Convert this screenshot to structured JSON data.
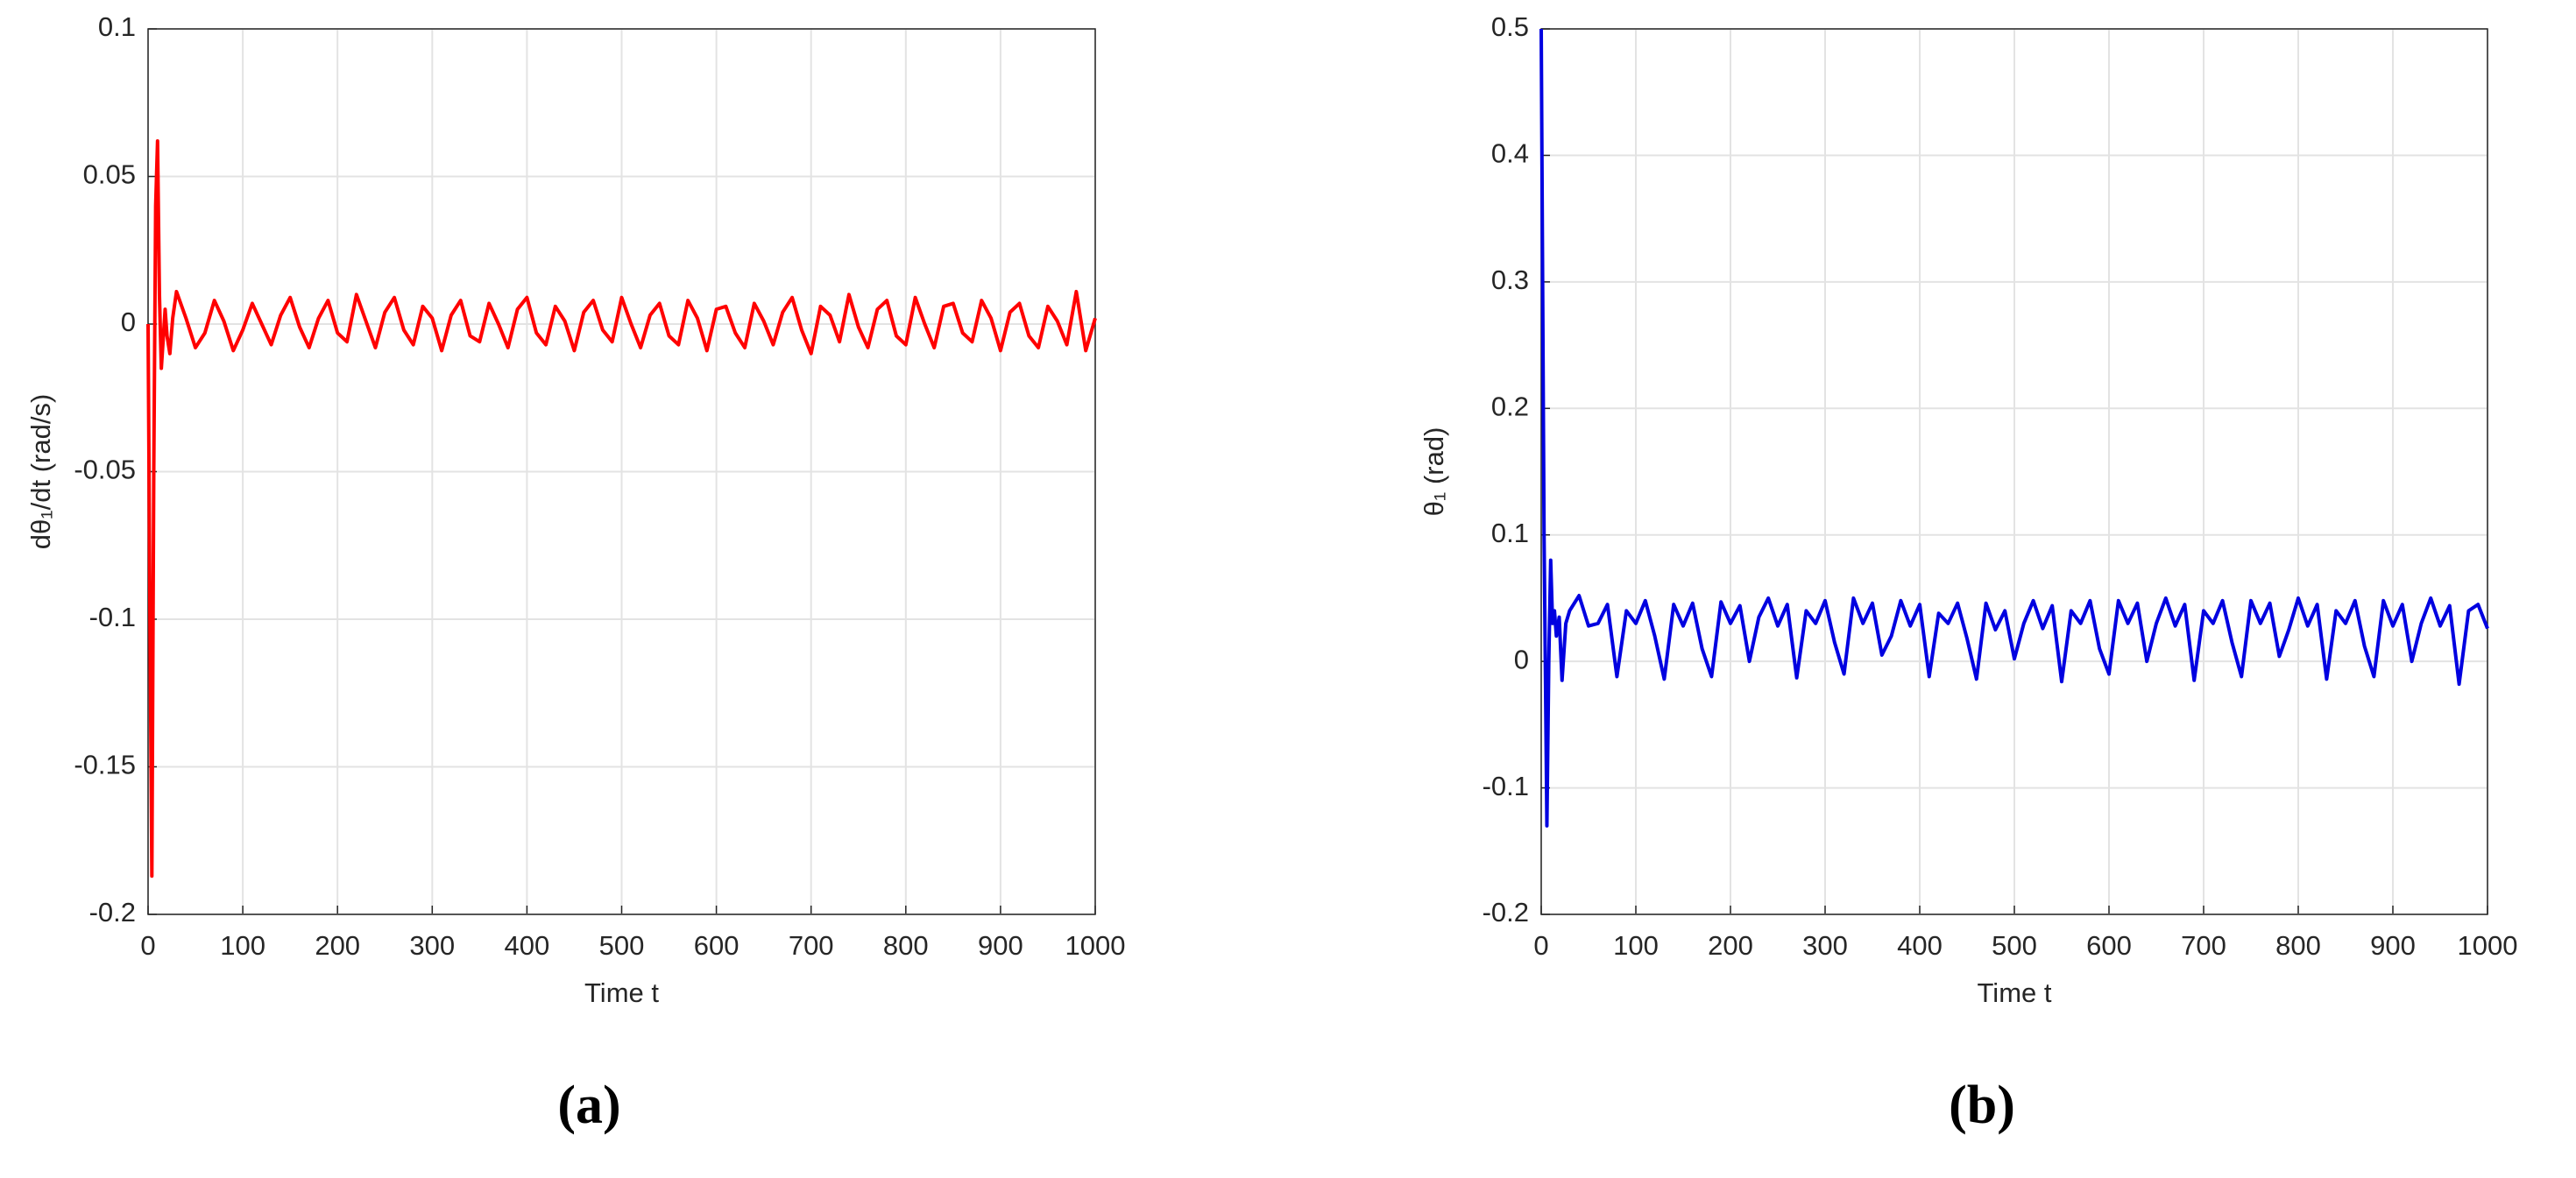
{
  "chart_data": [
    {
      "type": "line",
      "panel_label": "(a)",
      "xlabel": "Time t",
      "ylabel": "dθ₁/dt (rad/s)",
      "xlim": [
        0,
        1000
      ],
      "xticks": [
        0,
        100,
        200,
        300,
        400,
        500,
        600,
        700,
        800,
        900,
        1000
      ],
      "ylim": [
        -0.2,
        0.1
      ],
      "yticks": [
        -0.2,
        -0.15,
        -0.1,
        -0.05,
        0,
        0.05,
        0.1
      ],
      "grid": true,
      "x": [
        0,
        2,
        4,
        6,
        8,
        10,
        12,
        14,
        16,
        18,
        20,
        23,
        26,
        30,
        40,
        50,
        60,
        70,
        80,
        90,
        100,
        110,
        120,
        130,
        140,
        150,
        160,
        170,
        180,
        190,
        200,
        210,
        220,
        230,
        240,
        250,
        260,
        270,
        280,
        290,
        300,
        310,
        320,
        330,
        340,
        350,
        360,
        370,
        380,
        390,
        400,
        410,
        420,
        430,
        440,
        450,
        460,
        470,
        480,
        490,
        500,
        510,
        520,
        530,
        540,
        550,
        560,
        570,
        580,
        590,
        600,
        610,
        620,
        630,
        640,
        650,
        660,
        670,
        680,
        690,
        700,
        710,
        720,
        730,
        740,
        750,
        760,
        770,
        780,
        790,
        800,
        810,
        820,
        830,
        840,
        850,
        860,
        870,
        880,
        890,
        900,
        910,
        920,
        930,
        940,
        950,
        960,
        970,
        980,
        990,
        1000
      ],
      "series": [
        {
          "color": "#ff0000",
          "values": [
            0,
            -0.1,
            -0.187,
            -0.05,
            0.04,
            0.062,
            0.01,
            -0.015,
            -0.005,
            0.005,
            -0.004,
            -0.01,
            0.002,
            0.011,
            0.002,
            -0.008,
            -0.003,
            0.008,
            0.001,
            -0.009,
            -0.002,
            0.007,
            0.0,
            -0.007,
            0.003,
            0.009,
            -0.001,
            -0.008,
            0.002,
            0.008,
            -0.003,
            -0.006,
            0.01,
            0.001,
            -0.008,
            0.004,
            0.009,
            -0.002,
            -0.007,
            0.006,
            0.002,
            -0.009,
            0.003,
            0.008,
            -0.004,
            -0.006,
            0.007,
            0.0,
            -0.008,
            0.005,
            0.009,
            -0.003,
            -0.007,
            0.006,
            0.001,
            -0.009,
            0.004,
            0.008,
            -0.002,
            -0.006,
            0.009,
            0.0,
            -0.008,
            0.003,
            0.007,
            -0.004,
            -0.007,
            0.008,
            0.002,
            -0.009,
            0.005,
            0.006,
            -0.003,
            -0.008,
            0.007,
            0.001,
            -0.007,
            0.004,
            0.009,
            -0.002,
            -0.01,
            0.006,
            0.003,
            -0.006,
            0.01,
            -0.001,
            -0.008,
            0.005,
            0.008,
            -0.004,
            -0.007,
            0.009,
            0.0,
            -0.008,
            0.006,
            0.007,
            -0.003,
            -0.006,
            0.008,
            0.002,
            -0.009,
            0.004,
            0.007,
            -0.004,
            -0.008,
            0.006,
            0.001,
            -0.007,
            0.011,
            -0.009,
            0.002
          ]
        }
      ]
    },
    {
      "type": "line",
      "panel_label": "(b)",
      "xlabel": "Time t",
      "ylabel": "θ₁ (rad)",
      "xlim": [
        0,
        1000
      ],
      "xticks": [
        0,
        100,
        200,
        300,
        400,
        500,
        600,
        700,
        800,
        900,
        1000
      ],
      "ylim": [
        -0.2,
        0.5
      ],
      "yticks": [
        -0.2,
        -0.1,
        0,
        0.1,
        0.2,
        0.3,
        0.4,
        0.5
      ],
      "grid": true,
      "x": [
        0,
        3,
        6,
        8,
        10,
        12,
        14,
        16,
        19,
        22,
        26,
        30,
        40,
        50,
        60,
        70,
        80,
        90,
        100,
        110,
        120,
        130,
        140,
        150,
        160,
        170,
        180,
        190,
        200,
        210,
        220,
        230,
        240,
        250,
        260,
        270,
        280,
        290,
        300,
        310,
        320,
        330,
        340,
        350,
        360,
        370,
        380,
        390,
        400,
        410,
        420,
        430,
        440,
        450,
        460,
        470,
        480,
        490,
        500,
        510,
        520,
        530,
        540,
        550,
        560,
        570,
        580,
        590,
        600,
        610,
        620,
        630,
        640,
        650,
        660,
        670,
        680,
        690,
        700,
        710,
        720,
        730,
        740,
        750,
        760,
        770,
        780,
        790,
        800,
        810,
        820,
        830,
        840,
        850,
        860,
        870,
        880,
        890,
        900,
        910,
        920,
        930,
        940,
        950,
        960,
        970,
        980,
        990,
        1000
      ],
      "series": [
        {
          "color": "#0000e0",
          "values": [
            0.5,
            0.1,
            -0.13,
            0.0,
            0.08,
            0.03,
            0.04,
            0.02,
            0.035,
            -0.015,
            0.03,
            0.04,
            0.052,
            0.028,
            0.03,
            0.045,
            -0.012,
            0.04,
            0.03,
            0.048,
            0.02,
            -0.014,
            0.045,
            0.028,
            0.046,
            0.01,
            -0.012,
            0.047,
            0.03,
            0.044,
            0.0,
            0.035,
            0.05,
            0.028,
            0.045,
            -0.013,
            0.04,
            0.03,
            0.048,
            0.015,
            -0.01,
            0.05,
            0.03,
            0.046,
            0.005,
            0.02,
            0.048,
            0.028,
            0.045,
            -0.012,
            0.038,
            0.03,
            0.046,
            0.018,
            -0.014,
            0.046,
            0.025,
            0.04,
            0.002,
            0.03,
            0.048,
            0.026,
            0.044,
            -0.016,
            0.04,
            0.03,
            0.048,
            0.01,
            -0.01,
            0.048,
            0.03,
            0.046,
            0.0,
            0.03,
            0.05,
            0.028,
            0.045,
            -0.015,
            0.04,
            0.03,
            0.048,
            0.015,
            -0.012,
            0.048,
            0.03,
            0.046,
            0.004,
            0.025,
            0.05,
            0.028,
            0.045,
            -0.014,
            0.04,
            0.03,
            0.048,
            0.012,
            -0.012,
            0.048,
            0.028,
            0.045,
            0.0,
            0.03,
            0.05,
            0.028,
            0.044,
            -0.018,
            0.04,
            0.045,
            0.026
          ]
        }
      ]
    }
  ]
}
